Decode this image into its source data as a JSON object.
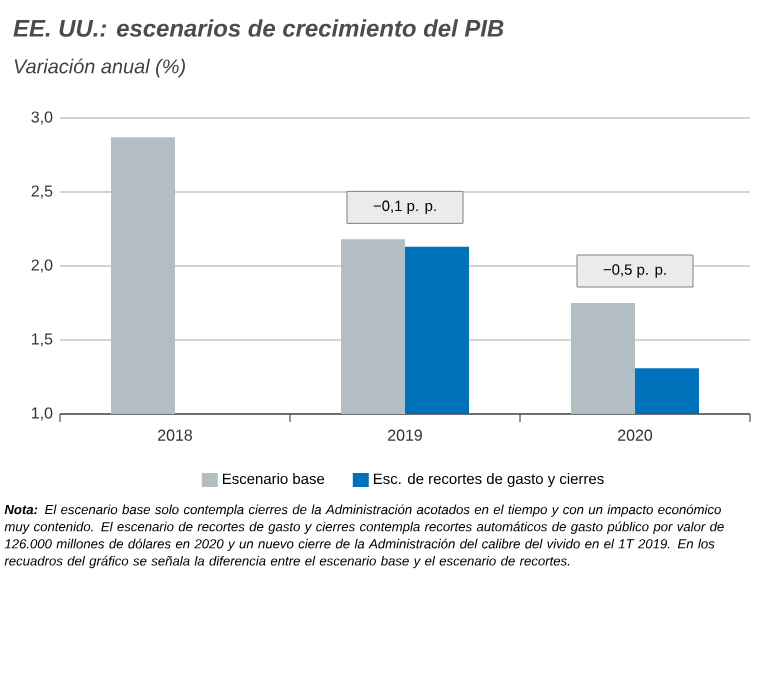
{
  "chart_data": {
    "type": "bar",
    "title": "EE. UU.: escenarios de crecimiento del PIB",
    "subtitle": "Variación anual (%)",
    "categories": [
      "2018",
      "2019",
      "2020"
    ],
    "series": [
      {
        "name": "Escenario base",
        "color": "#b3bec4",
        "values": [
          2.87,
          2.18,
          1.75
        ]
      },
      {
        "name": "Esc. de recortes de gasto y cierres",
        "color": "#0072bc",
        "values": [
          null,
          2.13,
          1.31
        ]
      }
    ],
    "ylim": [
      1,
      3
    ],
    "yticks": [
      {
        "value": 1,
        "label": "1,0"
      },
      {
        "value": 1.5,
        "label": "1,5"
      },
      {
        "value": 2,
        "label": "2,0"
      },
      {
        "value": 2.5,
        "label": "2,5"
      },
      {
        "value": 3,
        "label": "3,0"
      }
    ],
    "grid": "y",
    "legend": "bottom",
    "annotations": [
      "−0,1 p. p.",
      "−0,5 p. p.",
      "**Nota:** El escenario base solo contempla cierres de la Administración acotados en el tiempo y con un impacto económico muy contenido. El escenario de recortes de gasto y cierres contempla recortes automáticos de gasto público por valor de 126.000 millones de dólares en 2020 y un nuevo cierre de la Administración del calibre del vivido en el 1T 2019. En los recuadros del gráfico se señala la diferencia entre el escenario base y el escenario de recortes."
    ]
  }
}
